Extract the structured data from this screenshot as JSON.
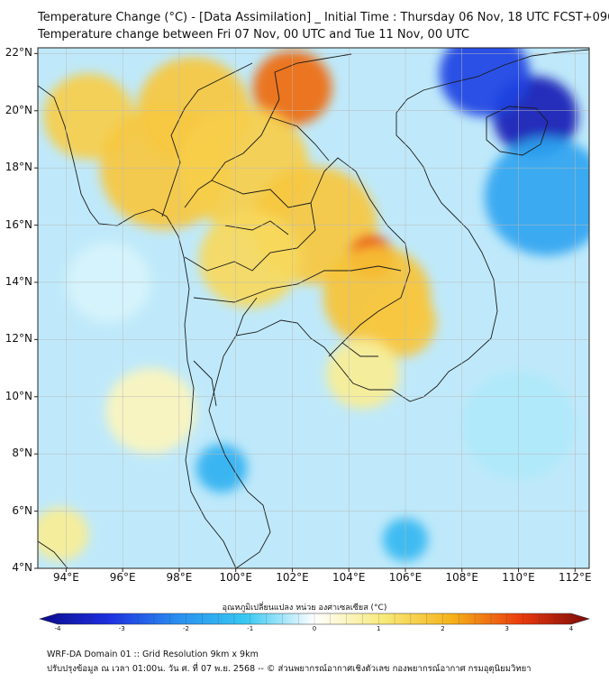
{
  "header": {
    "line1": "Temperature Change (°C) - [Data Assimilation] _ Initial Time : Thursday 06 Nov, 18 UTC FCST+096",
    "line2": "Temperature change between Fri 07 Nov, 00 UTC and Tue 11 Nov, 00 UTC"
  },
  "axes": {
    "lat_labels": [
      "22°N",
      "20°N",
      "18°N",
      "16°N",
      "14°N",
      "12°N",
      "10°N",
      "8°N",
      "6°N",
      "4°N"
    ],
    "lon_labels": [
      "94°E",
      "96°E",
      "98°E",
      "100°E",
      "102°E",
      "104°E",
      "106°E",
      "108°E",
      "110°E",
      "112°E"
    ]
  },
  "colorbar": {
    "title": "อุณหภูมิเปลี่ยนแปลง หน่วย องศาเซลเซียส (°C)",
    "tick_labels": [
      "-4",
      "-3",
      "-2",
      "-1",
      "0",
      "1",
      "2",
      "3",
      "4"
    ],
    "stops": [
      {
        "v": -4,
        "c": "#0a0a8c"
      },
      {
        "v": -3,
        "c": "#1d2fe0"
      },
      {
        "v": -2,
        "c": "#2a8ef0"
      },
      {
        "v": -1,
        "c": "#37c8f2"
      },
      {
        "v": 0,
        "c": "#ffffff"
      },
      {
        "v": 1,
        "c": "#f8ea7a"
      },
      {
        "v": 2,
        "c": "#f6b21a"
      },
      {
        "v": 3,
        "c": "#ea3b0c"
      },
      {
        "v": 4,
        "c": "#7c0808"
      }
    ]
  },
  "map": {
    "lon_range": [
      93,
      112.5
    ],
    "lat_range": [
      4,
      22.2
    ],
    "background": "#bfe9fa",
    "field": [
      {
        "name": "far-west-yellow",
        "lon": 94.8,
        "lat": 19.8,
        "r": 1.6,
        "v": 1.5
      },
      {
        "name": "myanmar-yellow-a",
        "lon": 97.5,
        "lat": 18.0,
        "r": 2.3,
        "v": 1.6
      },
      {
        "name": "myanmar-yellow-b",
        "lon": 98.5,
        "lat": 20.0,
        "r": 2.0,
        "v": 1.6
      },
      {
        "name": "laos-north-orange",
        "lon": 102.0,
        "lat": 20.8,
        "r": 1.4,
        "v": 2.6
      },
      {
        "name": "north-thai-yellow",
        "lon": 100.3,
        "lat": 18.0,
        "r": 2.3,
        "v": 1.5
      },
      {
        "name": "isan-yellow",
        "lon": 102.8,
        "lat": 16.0,
        "r": 2.2,
        "v": 1.6
      },
      {
        "name": "central-thai-yellow",
        "lon": 100.5,
        "lat": 14.8,
        "r": 1.8,
        "v": 1.3
      },
      {
        "name": "cambodia-orange",
        "lon": 104.8,
        "lat": 14.9,
        "r": 0.8,
        "v": 3.0
      },
      {
        "name": "cambodia-yellow",
        "lon": 105.0,
        "lat": 13.5,
        "r": 1.9,
        "v": 1.7
      },
      {
        "name": "south-vietnam-yellow",
        "lon": 105.8,
        "lat": 12.6,
        "r": 1.3,
        "v": 1.6
      },
      {
        "name": "mekong-pale",
        "lon": 104.5,
        "lat": 10.8,
        "r": 1.3,
        "v": 0.8
      },
      {
        "name": "andaman-pale",
        "lon": 97.0,
        "lat": 9.5,
        "r": 1.6,
        "v": 0.5
      },
      {
        "name": "south-west-yellow",
        "lon": 93.8,
        "lat": 5.2,
        "r": 1.0,
        "v": 0.8
      },
      {
        "name": "hainan-deep-blue",
        "lon": 110.6,
        "lat": 19.8,
        "r": 1.5,
        "v": -3.5
      },
      {
        "name": "gulf-tonkin-blue",
        "lon": 108.8,
        "lat": 21.3,
        "r": 1.6,
        "v": -2.8
      },
      {
        "name": "scs-blue",
        "lon": 111.0,
        "lat": 17.0,
        "r": 2.2,
        "v": -1.6
      },
      {
        "name": "malay-blue",
        "lon": 99.5,
        "lat": 7.5,
        "r": 0.9,
        "v": -1.4
      },
      {
        "name": "scs-south-blue",
        "lon": 106.0,
        "lat": 5.0,
        "r": 0.8,
        "v": -1.3
      },
      {
        "name": "andaman-white",
        "lon": 95.5,
        "lat": 14.0,
        "r": 1.5,
        "v": -0.2
      },
      {
        "name": "scs-white",
        "lon": 110.0,
        "lat": 9.0,
        "r": 2.0,
        "v": -0.4
      }
    ]
  },
  "footer": {
    "line1": "WRF-DA Domain 01 :: Grid Resolution 9km x 9km",
    "line2": "ปรับปรุงข้อมูล ณ เวลา 01:00น. วัน ศ. ที่ 07 พ.ย. 2568 -- © ส่วนพยากรณ์อากาศเชิงตัวเลข กองพยากรณ์อากาศ กรมอุตุนิยมวิทยา"
  }
}
